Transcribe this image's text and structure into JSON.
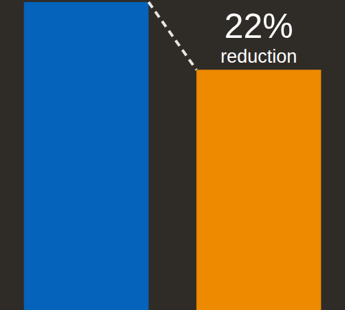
{
  "chart_data": {
    "type": "bar",
    "categories": [
      null,
      null
    ],
    "values": [
      100,
      78
    ],
    "colors": [
      "#0563BB",
      "#EE8A00"
    ],
    "ylim": [
      0,
      100
    ],
    "grid": false,
    "tick_labels": false,
    "annotations": [
      "22%",
      "reduction"
    ]
  }
}
